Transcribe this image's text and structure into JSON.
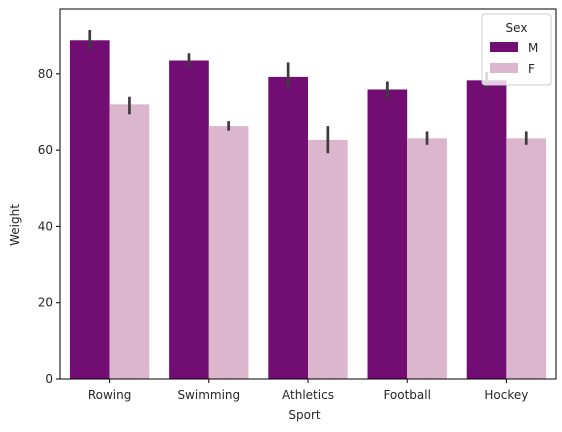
{
  "chart_data": {
    "type": "bar",
    "xlabel": "Sport",
    "ylabel": "Weight",
    "categories": [
      "Rowing",
      "Swimming",
      "Athletics",
      "Football",
      "Hockey"
    ],
    "ylim": [
      0,
      97
    ],
    "yticks": [
      0,
      20,
      40,
      60,
      80
    ],
    "grid": false,
    "legend": {
      "title": "Sex",
      "placement": "top-right"
    },
    "series": [
      {
        "name": "M",
        "color": "#720e73",
        "values": [
          88.8,
          83.5,
          79.2,
          75.9,
          78.3
        ],
        "ci": [
          [
            86.2,
            91.5
          ],
          [
            81.6,
            85.4
          ],
          [
            76.0,
            83.0
          ],
          [
            73.4,
            78.0
          ],
          [
            76.0,
            80.5
          ]
        ]
      },
      {
        "name": "F",
        "color": "#dcb6cd",
        "values": [
          72.0,
          66.3,
          62.7,
          63.1,
          63.1
        ],
        "ci": [
          [
            69.4,
            74.0
          ],
          [
            65.1,
            67.6
          ],
          [
            59.2,
            66.3
          ],
          [
            61.4,
            64.9
          ],
          [
            61.4,
            64.9
          ]
        ]
      }
    ],
    "errorbar_color": "#3c3c3c"
  }
}
